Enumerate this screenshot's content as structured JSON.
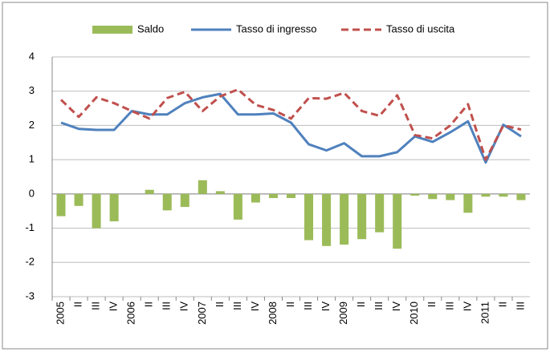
{
  "chart_data": {
    "type": "bar_line",
    "categories": [
      "2005",
      "II",
      "III",
      "IV",
      "2006",
      "II",
      "III",
      "IV",
      "2007",
      "II",
      "III",
      "IV",
      "2008",
      "II",
      "III",
      "IV",
      "2009",
      "II",
      "III",
      "IV",
      "2010",
      "II",
      "III",
      "IV",
      "2011",
      "II",
      "III"
    ],
    "series": [
      {
        "name": "Saldo",
        "type": "bar",
        "color": "#9bbb59",
        "values": [
          -0.65,
          -0.35,
          -1.0,
          -0.8,
          0,
          0.12,
          -0.48,
          -0.38,
          0.4,
          0.08,
          -0.75,
          -0.25,
          -0.12,
          -0.12,
          -1.35,
          -1.52,
          -1.48,
          -1.32,
          -1.12,
          -1.6,
          -0.05,
          -0.15,
          -0.18,
          -0.55,
          -0.08,
          -0.08,
          -0.18
        ]
      },
      {
        "name": "Tasso di ingresso",
        "type": "line",
        "color": "#4f81bd",
        "dashed": false,
        "values": [
          2.08,
          1.9,
          1.87,
          1.87,
          2.42,
          2.32,
          2.32,
          2.65,
          2.82,
          2.92,
          2.32,
          2.32,
          2.35,
          2.08,
          1.45,
          1.27,
          1.48,
          1.1,
          1.1,
          1.22,
          1.68,
          1.52,
          1.8,
          2.12,
          0.92,
          2.02,
          1.68
        ]
      },
      {
        "name": "Tasso di uscita",
        "type": "line",
        "color": "#c0504d",
        "dashed": true,
        "values": [
          2.75,
          2.25,
          2.82,
          2.65,
          2.42,
          2.2,
          2.8,
          2.98,
          2.42,
          2.85,
          3.05,
          2.6,
          2.45,
          2.2,
          2.8,
          2.78,
          2.95,
          2.42,
          2.28,
          2.88,
          1.72,
          1.62,
          2.0,
          2.62,
          1.0,
          2.0,
          1.88
        ]
      }
    ],
    "ylim": [
      -3,
      4
    ],
    "yticks": [
      -3,
      -2,
      -1,
      0,
      1,
      2,
      3,
      4
    ],
    "grid": true,
    "legend": "top"
  }
}
